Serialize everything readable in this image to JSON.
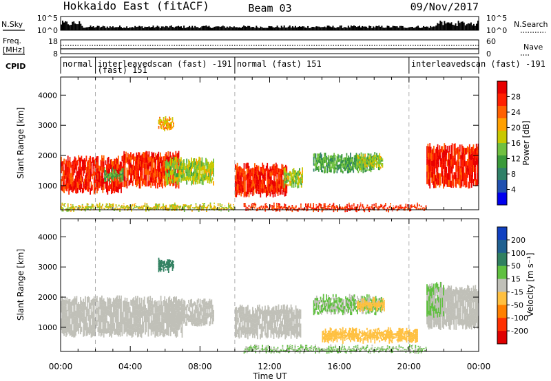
{
  "header": {
    "title": "Hokkaido East (fitACF)",
    "beam": "Beam 03",
    "date": "09/Nov/2017"
  },
  "top_strips": {
    "sky_label": "N.Sky",
    "search_label": "N.Search",
    "noise_ticks_left": [
      "10^5",
      "10^0"
    ],
    "noise_ticks_right": [
      "10^5",
      "10^0"
    ],
    "freq_label_line1": "Freq.",
    "freq_label_line2": "[MHz]",
    "freq_ticks": [
      "18",
      "8"
    ],
    "nave_label": "Nave",
    "nave_ticks": [
      "60",
      "0"
    ],
    "cpid_label": "CPID",
    "cpid_segments": [
      {
        "start_hour": 0.0,
        "label": "normal",
        "label2": ""
      },
      {
        "start_hour": 2.0,
        "label": "interleavedscan (fast) -191",
        "label2": "(fast) 151"
      },
      {
        "start_hour": 10.0,
        "label": "normal (fast) 151",
        "label2": ""
      },
      {
        "start_hour": 20.0,
        "label": "interleavedscan (fast) -191",
        "label2": ""
      }
    ]
  },
  "colors": {
    "power_scale": [
      "#0000ee",
      "#2050b0",
      "#308068",
      "#3a9a3a",
      "#70c040",
      "#c8c800",
      "#ffa000",
      "#ff6000",
      "#ff2000",
      "#e80000"
    ],
    "velocity_scale": [
      "#1040c0",
      "#206090",
      "#308060",
      "#60c040",
      "#c0c0b8",
      "#ffc040",
      "#ff8000",
      "#ff3000",
      "#e00000"
    ],
    "ground_scatter": "#c0c0b8"
  },
  "chart_data": [
    {
      "type": "heatmap",
      "name": "power-panel",
      "ylabel": "Slant Range [km]",
      "yticks": [
        "1000",
        "2000",
        "3000",
        "4000"
      ],
      "ylim": [
        200,
        4600
      ],
      "xlim_hours": [
        0,
        24
      ],
      "colorbar": {
        "label": "Power [dB]",
        "ticks": [
          "4",
          "8",
          "12",
          "16",
          "20",
          "24",
          "28"
        ],
        "range": [
          0,
          32
        ]
      },
      "regions": [
        {
          "t0": 0.0,
          "t1": 3.5,
          "r0": 800,
          "r1": 1900,
          "value": 28
        },
        {
          "t0": 3.5,
          "t1": 6.8,
          "r0": 1000,
          "r1": 2050,
          "value": 27
        },
        {
          "t0": 6.0,
          "t1": 8.8,
          "r0": 1100,
          "r1": 1850,
          "value": 16
        },
        {
          "t0": 2.5,
          "t1": 3.6,
          "r0": 1200,
          "r1": 1500,
          "value": 12
        },
        {
          "t0": 10.0,
          "t1": 13.0,
          "r0": 700,
          "r1": 1650,
          "value": 28
        },
        {
          "t0": 12.8,
          "t1": 13.9,
          "r0": 1000,
          "r1": 1500,
          "value": 16
        },
        {
          "t0": 14.5,
          "t1": 18.0,
          "r0": 1500,
          "r1": 2000,
          "value": 12
        },
        {
          "t0": 17.0,
          "t1": 18.5,
          "r0": 1600,
          "r1": 2000,
          "value": 16
        },
        {
          "t0": 21.0,
          "t1": 24.0,
          "r0": 1000,
          "r1": 2300,
          "value": 28
        },
        {
          "t0": 10.5,
          "t1": 21.0,
          "r0": 220,
          "r1": 330,
          "value": 27
        },
        {
          "t0": 0.0,
          "t1": 10.0,
          "r0": 230,
          "r1": 330,
          "value": 18
        },
        {
          "t0": 5.6,
          "t1": 6.5,
          "r0": 2900,
          "r1": 3200,
          "value": 20
        }
      ]
    },
    {
      "type": "heatmap",
      "name": "velocity-panel",
      "ylabel": "Slant Range [km]",
      "yticks": [
        "1000",
        "2000",
        "3000",
        "4000"
      ],
      "ylim": [
        200,
        4600
      ],
      "xlim_hours": [
        0,
        24
      ],
      "xticks": [
        "00:00",
        "04:00",
        "08:00",
        "12:00",
        "16:00",
        "20:00",
        "00:00"
      ],
      "xlabel": "Time UT",
      "colorbar": {
        "label": "Velocity [m s⁻¹]",
        "ticks": [
          "200",
          "100",
          "50",
          "15",
          "-15",
          "-50",
          "-100",
          "-200"
        ],
        "range": [
          -250,
          250
        ]
      },
      "regions": [
        {
          "t0": 0.0,
          "t1": 7.0,
          "r0": 750,
          "r1": 1950,
          "value": 0
        },
        {
          "t0": 6.0,
          "t1": 8.8,
          "r0": 1100,
          "r1": 1850,
          "value": 0
        },
        {
          "t0": 10.0,
          "t1": 13.8,
          "r0": 700,
          "r1": 1650,
          "value": 0
        },
        {
          "t0": 14.5,
          "t1": 18.5,
          "r0": 1500,
          "r1": 2000,
          "value": 30
        },
        {
          "t0": 17.0,
          "t1": 18.6,
          "r0": 1600,
          "r1": 1900,
          "value": -60
        },
        {
          "t0": 21.0,
          "t1": 24.0,
          "r0": 1000,
          "r1": 2300,
          "value": 0
        },
        {
          "t0": 21.0,
          "t1": 22.0,
          "r0": 1400,
          "r1": 2400,
          "value": 30
        },
        {
          "t0": 10.5,
          "t1": 21.0,
          "r0": 220,
          "r1": 330,
          "value": 30
        },
        {
          "t0": 15.0,
          "t1": 20.5,
          "r0": 550,
          "r1": 900,
          "value": -60
        },
        {
          "t0": 5.6,
          "t1": 6.5,
          "r0": 2900,
          "r1": 3200,
          "value": 120
        }
      ]
    }
  ]
}
